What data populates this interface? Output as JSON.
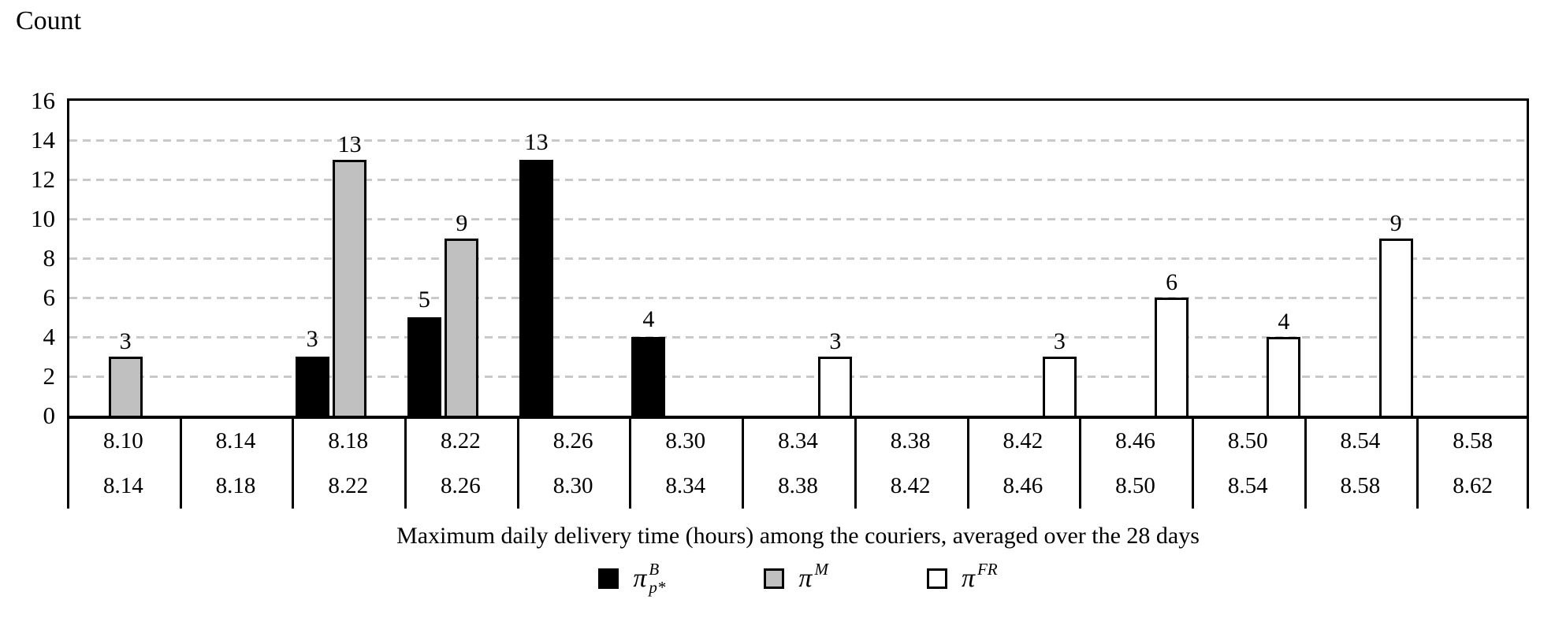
{
  "title": "Count",
  "x_axis_title": "Maximum daily delivery time (hours) among the couriers, averaged over the 28 days",
  "y_axis": {
    "ticks": [
      16,
      14,
      12,
      10,
      8,
      6,
      4,
      2,
      0
    ],
    "max": 16
  },
  "series_colors": {
    "black": "#000000",
    "gray": "#c0c0c0",
    "white": "#ffffff"
  },
  "gridline_color": "#c9c9c9",
  "legend": [
    {
      "id": "pi-b-pstar",
      "pi": "π",
      "sup": "B",
      "sub": "p*",
      "fill": "#000000",
      "series": "black"
    },
    {
      "id": "pi-m",
      "pi": "π",
      "sup": "M",
      "sub": "",
      "fill": "#c0c0c0",
      "series": "gray"
    },
    {
      "id": "pi-fr",
      "pi": "π",
      "sup": "FR",
      "sub": "",
      "fill": "#ffffff",
      "series": "white"
    }
  ],
  "bins": [
    {
      "from": "8.10",
      "to": "8.14",
      "values": {
        "black": null,
        "gray": 3,
        "white": null
      }
    },
    {
      "from": "8.14",
      "to": "8.18",
      "values": {
        "black": null,
        "gray": null,
        "white": null
      }
    },
    {
      "from": "8.18",
      "to": "8.22",
      "values": {
        "black": 3,
        "gray": 13,
        "white": null
      }
    },
    {
      "from": "8.22",
      "to": "8.26",
      "values": {
        "black": 5,
        "gray": 9,
        "white": null
      }
    },
    {
      "from": "8.26",
      "to": "8.30",
      "values": {
        "black": 13,
        "gray": null,
        "white": null
      }
    },
    {
      "from": "8.30",
      "to": "8.34",
      "values": {
        "black": 4,
        "gray": null,
        "white": null
      }
    },
    {
      "from": "8.34",
      "to": "8.38",
      "values": {
        "black": null,
        "gray": null,
        "white": 3
      }
    },
    {
      "from": "8.38",
      "to": "8.42",
      "values": {
        "black": null,
        "gray": null,
        "white": null
      }
    },
    {
      "from": "8.42",
      "to": "8.46",
      "values": {
        "black": null,
        "gray": null,
        "white": 3
      }
    },
    {
      "from": "8.46",
      "to": "8.50",
      "values": {
        "black": null,
        "gray": null,
        "white": 6
      }
    },
    {
      "from": "8.50",
      "to": "8.54",
      "values": {
        "black": null,
        "gray": null,
        "white": 4
      }
    },
    {
      "from": "8.54",
      "to": "8.58",
      "values": {
        "black": null,
        "gray": null,
        "white": 9
      }
    },
    {
      "from": "8.58",
      "to": "8.62",
      "values": {
        "black": null,
        "gray": null,
        "white": null
      }
    }
  ],
  "chart_data": {
    "type": "bar",
    "title": "Count",
    "xlabel": "Maximum daily delivery time (hours) among the couriers, averaged over the 28 days",
    "ylabel": "Count",
    "ylim": [
      0,
      16
    ],
    "ytick_step": 2,
    "grid": "horizontal-dashed",
    "legend_position": "bottom",
    "categories": [
      "8.10–8.14",
      "8.14–8.18",
      "8.18–8.22",
      "8.22–8.26",
      "8.26–8.30",
      "8.30–8.34",
      "8.34–8.38",
      "8.38–8.42",
      "8.42–8.46",
      "8.46–8.50",
      "8.50–8.54",
      "8.54–8.58",
      "8.58–8.62"
    ],
    "series": [
      {
        "name": "π_p*^B",
        "fill": "#000000",
        "values": [
          null,
          null,
          3,
          5,
          13,
          4,
          null,
          null,
          null,
          null,
          null,
          null,
          null
        ]
      },
      {
        "name": "π^M",
        "fill": "#c0c0c0",
        "values": [
          3,
          null,
          13,
          9,
          null,
          null,
          null,
          null,
          null,
          null,
          null,
          null,
          null
        ]
      },
      {
        "name": "π^FR",
        "fill": "#ffffff",
        "values": [
          null,
          null,
          null,
          null,
          null,
          null,
          3,
          null,
          3,
          6,
          4,
          9,
          null
        ]
      }
    ]
  }
}
